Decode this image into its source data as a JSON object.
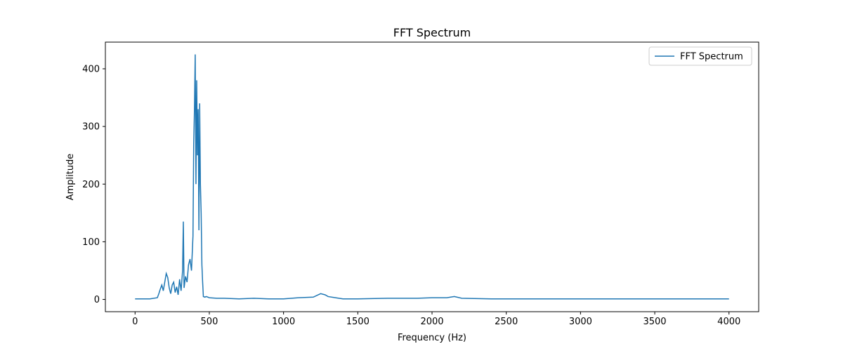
{
  "chart_data": {
    "type": "line",
    "title": "FFT Spectrum",
    "xlabel": "Frequency (Hz)",
    "ylabel": "Amplitude",
    "x": [
      0,
      50,
      100,
      150,
      160,
      170,
      180,
      190,
      200,
      210,
      220,
      230,
      240,
      250,
      260,
      270,
      280,
      290,
      300,
      310,
      320,
      325,
      330,
      340,
      350,
      360,
      370,
      380,
      390,
      395,
      400,
      405,
      410,
      415,
      420,
      425,
      430,
      435,
      440,
      445,
      450,
      455,
      460,
      470,
      480,
      500,
      550,
      600,
      700,
      800,
      900,
      1000,
      1100,
      1200,
      1250,
      1280,
      1300,
      1350,
      1400,
      1500,
      1700,
      1900,
      2000,
      2100,
      2150,
      2200,
      2400,
      2700,
      3000,
      3500,
      4000
    ],
    "series": [
      {
        "name": "FFT Spectrum",
        "color": "#1f77b4",
        "values": [
          1,
          1,
          1,
          3,
          10,
          18,
          25,
          15,
          30,
          45,
          38,
          20,
          10,
          25,
          30,
          12,
          22,
          8,
          35,
          15,
          50,
          135,
          20,
          40,
          30,
          60,
          70,
          50,
          110,
          270,
          330,
          425,
          200,
          380,
          250,
          330,
          120,
          340,
          200,
          150,
          60,
          30,
          5,
          4,
          5,
          3,
          2,
          2,
          1,
          2,
          1,
          1,
          3,
          4,
          10,
          8,
          5,
          3,
          1,
          1,
          2,
          2,
          3,
          3,
          5,
          2,
          1,
          1,
          1,
          1,
          1
        ]
      }
    ],
    "xlim": [
      -200,
      4200
    ],
    "ylim": [
      -21.25,
      446.25
    ],
    "xticks": [
      0,
      500,
      1000,
      1500,
      2000,
      2500,
      3000,
      3500,
      4000
    ],
    "yticks": [
      0,
      100,
      200,
      300,
      400
    ],
    "legend": "upper right"
  }
}
